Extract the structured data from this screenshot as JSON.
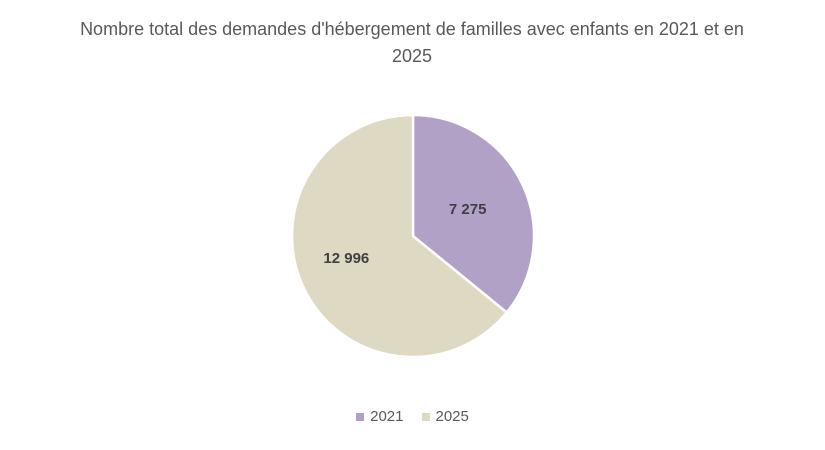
{
  "chart_data": {
    "type": "pie",
    "title": "Nombre total des demandes d'hébergement de familles avec enfants en 2021 et en 2025",
    "categories": [
      "2021",
      "2025"
    ],
    "values": [
      7275,
      12996
    ],
    "value_labels": [
      "7 275",
      "12 996"
    ],
    "colors": [
      "#b2a1c7",
      "#ddd9c3"
    ],
    "legend_position": "bottom"
  }
}
